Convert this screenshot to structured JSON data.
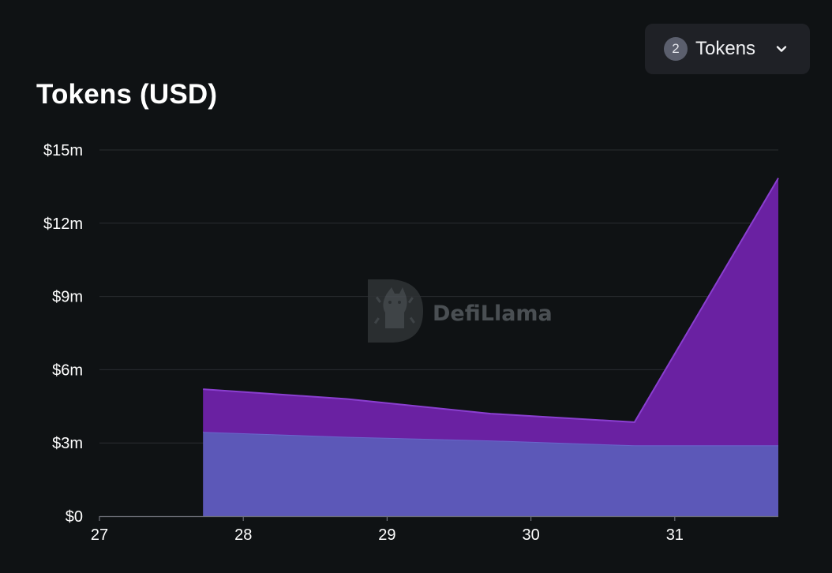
{
  "title": "Tokens (USD)",
  "token_selector": {
    "count": "2",
    "label": "Tokens",
    "icon": "chevron-down-icon"
  },
  "watermark": {
    "text": "DefiLlama"
  },
  "chart_data": {
    "type": "area",
    "stacked": true,
    "x": [
      27.72,
      28.72,
      29.72,
      30.72,
      31.72
    ],
    "series": [
      {
        "values": [
          3.45,
          3.25,
          3.1,
          2.9,
          2.9
        ],
        "color": "#5c58b8"
      },
      {
        "values": [
          1.75,
          1.55,
          1.1,
          0.95,
          10.95
        ],
        "color": "#6a21a2"
      }
    ],
    "xticks": [
      27,
      28,
      29,
      30,
      31
    ],
    "xtick_labels": [
      "27",
      "28",
      "29",
      "30",
      "31"
    ],
    "yticks": [
      0,
      3,
      6,
      9,
      12,
      15
    ],
    "ytick_labels": [
      "$0",
      "$3m",
      "$6m",
      "$9m",
      "$12m",
      "$15m"
    ],
    "xlim": [
      27,
      31.72
    ],
    "ylim": [
      0,
      15
    ],
    "ylabel_unit": "USD (millions)",
    "grid": true
  }
}
